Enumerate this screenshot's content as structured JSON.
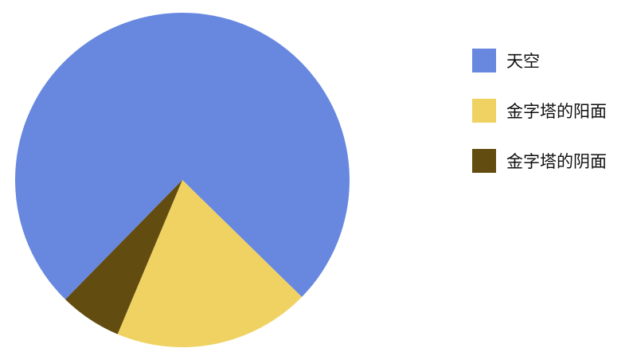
{
  "chart_data": {
    "type": "pie",
    "title": "",
    "legend_position": "right",
    "slices": [
      {
        "label": "天空",
        "value": 75,
        "color": "#6888e0"
      },
      {
        "label": "金字塔的阳面",
        "value": 19,
        "color": "#f0d262"
      },
      {
        "label": "金字塔的阴面",
        "value": 6,
        "color": "#634c10"
      }
    ]
  }
}
